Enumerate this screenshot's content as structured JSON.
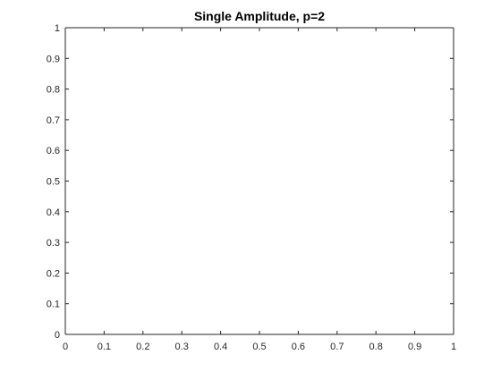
{
  "chart_data": {
    "type": "line",
    "title": "Single Amplitude, p=2",
    "xlabel": "",
    "ylabel": "",
    "xlim": [
      0,
      1
    ],
    "ylim": [
      0,
      1
    ],
    "xticks": [
      "0",
      "0.1",
      "0.2",
      "0.3",
      "0.4",
      "0.5",
      "0.6",
      "0.7",
      "0.8",
      "0.9",
      "1"
    ],
    "yticks": [
      "0",
      "0.1",
      "0.2",
      "0.3",
      "0.4",
      "0.5",
      "0.6",
      "0.7",
      "0.8",
      "0.9",
      "1"
    ],
    "grid": false,
    "series": []
  },
  "colors": {
    "axis": "#262626",
    "background": "#ffffff"
  }
}
